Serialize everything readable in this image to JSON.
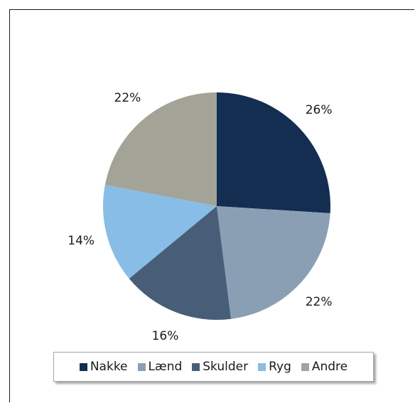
{
  "chart_data": {
    "type": "pie",
    "title": "",
    "slices": [
      {
        "label": "Nakke",
        "value": 26,
        "display": "26%",
        "color": "#142e52"
      },
      {
        "label": "Lænd",
        "value": 22,
        "display": "22%",
        "color": "#8a9fb3"
      },
      {
        "label": "Skulder",
        "value": 16,
        "display": "16%",
        "color": "#485e78"
      },
      {
        "label": "Ryg",
        "value": 14,
        "display": "14%",
        "color": "#87bde6"
      },
      {
        "label": "Andre",
        "value": 22,
        "display": "22%",
        "color": "#a3a397"
      }
    ],
    "start_angle_deg": 0,
    "direction": "clockwise",
    "legend_position": "bottom"
  }
}
